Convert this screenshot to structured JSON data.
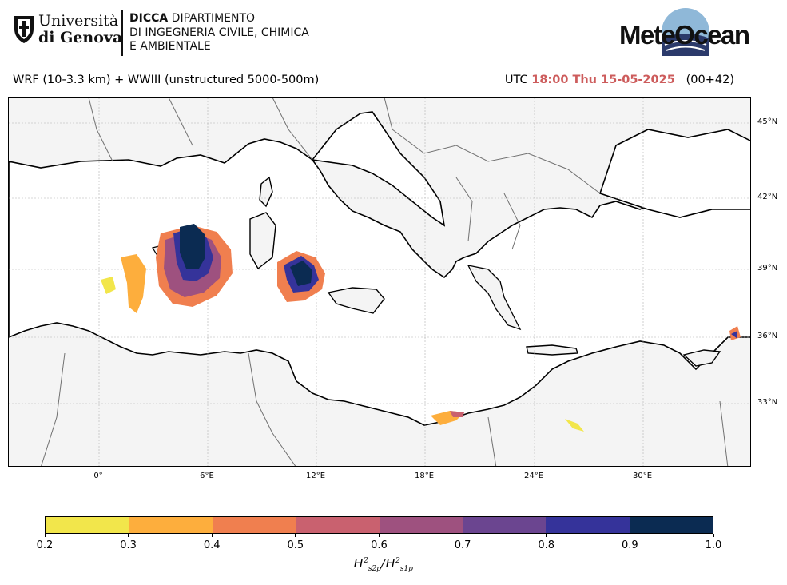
{
  "header": {
    "university_line1": "Università",
    "university_line2": "di Genova",
    "dept_bold": "DICCA",
    "dept_line1": " DIPARTIMENTO",
    "dept_line2": "DI INGEGNERIA CIVILE, CHIMICA",
    "dept_line3": "E AMBIENTALE",
    "brand": "MeteOcean",
    "brand_logo_icon": "meteocean-wave-logo",
    "university_logo_icon": "unige-crest-logo"
  },
  "title": {
    "model": "WRF (10-3.3 km) + WWIII (unstructured 5000-500m)",
    "utc_prefix": "UTC",
    "time": "18:00 Thu 15-05-2025",
    "lead": "(00+42)"
  },
  "map": {
    "lat_labels": [
      "45°N",
      "42°N",
      "39°N",
      "36°N",
      "33°N"
    ],
    "lon_labels": [
      "0°",
      "6°E",
      "12°E",
      "18°E",
      "24°E",
      "30°E"
    ],
    "land_color": "#f4f4f4",
    "sea_color": "#ffffff",
    "gridlines": true
  },
  "colorbar": {
    "ticks": [
      "0.2",
      "0.3",
      "0.4",
      "0.5",
      "0.6",
      "0.7",
      "0.8",
      "0.9",
      "1.0"
    ],
    "colors": [
      "#f2e64b",
      "#fdae3d",
      "#f07f4f",
      "#c9616f",
      "#9e517f",
      "#6b4590",
      "#35339a",
      "#0b2b52"
    ],
    "label_main": "H",
    "label_sub1": "s2p",
    "label_sup": "2",
    "label_sub2": "s1p"
  }
}
